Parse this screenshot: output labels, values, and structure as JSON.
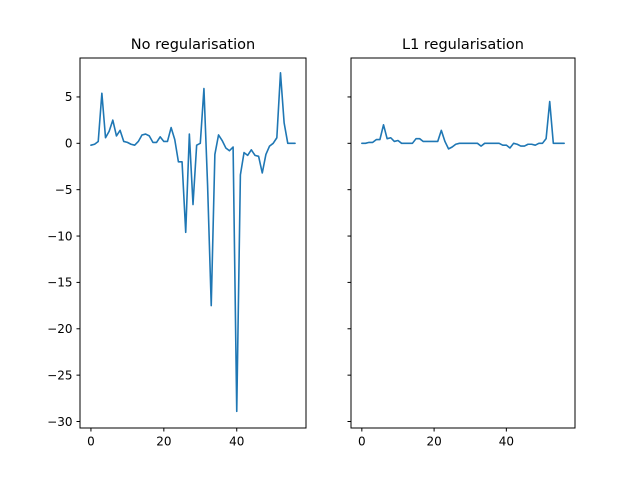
{
  "chart_data": [
    {
      "type": "line",
      "title": "No regularisation",
      "xlabel": "",
      "ylabel": "",
      "xlim": [
        -3,
        59
      ],
      "ylim": [
        -30.7,
        9.2
      ],
      "xticks": [
        0,
        20,
        40
      ],
      "yticks": [
        5,
        0,
        -5,
        -10,
        -15,
        -20,
        -25,
        -30
      ],
      "grid": false,
      "color": "#1f77b4",
      "series": [
        {
          "x": [
            0,
            1,
            2,
            3,
            4,
            5,
            6,
            7,
            8,
            9,
            10,
            11,
            12,
            13,
            14,
            15,
            16,
            17,
            18,
            19,
            20,
            21,
            22,
            23,
            24,
            25,
            26,
            27,
            28,
            29,
            30,
            31,
            32,
            33,
            34,
            35,
            36,
            37,
            38,
            39,
            40,
            41,
            42,
            43,
            44,
            45,
            46,
            47,
            48,
            49,
            50,
            51,
            52,
            53,
            54,
            55,
            56
          ],
          "values": [
            -0.2,
            -0.1,
            0.2,
            5.4,
            0.6,
            1.3,
            2.5,
            0.8,
            1.4,
            0.2,
            0.1,
            -0.1,
            -0.2,
            0.2,
            0.9,
            1.0,
            0.8,
            0.1,
            0.1,
            0.7,
            0.2,
            0.2,
            1.7,
            0.4,
            -2.0,
            -2.0,
            -9.6,
            1.0,
            -6.6,
            -0.2,
            0.0,
            5.9,
            -4.5,
            -17.5,
            -1.2,
            0.9,
            0.3,
            -0.5,
            -0.8,
            -0.4,
            -28.9,
            -3.4,
            -1.0,
            -1.3,
            -0.7,
            -1.3,
            -1.4,
            -3.2,
            -1.2,
            -0.3,
            0.0,
            0.6,
            7.6,
            2.2,
            0.0,
            0.0,
            0.0
          ]
        }
      ]
    },
    {
      "type": "line",
      "title": "L1 regularisation",
      "xlabel": "",
      "ylabel": "",
      "xlim": [
        -3,
        59
      ],
      "ylim": [
        -30.7,
        9.2
      ],
      "xticks": [
        0,
        20,
        40
      ],
      "yticks": [
        5,
        0,
        -5,
        -10,
        -15,
        -20,
        -25,
        -30
      ],
      "shared_y": true,
      "grid": false,
      "color": "#1f77b4",
      "series": [
        {
          "x": [
            0,
            1,
            2,
            3,
            4,
            5,
            6,
            7,
            8,
            9,
            10,
            11,
            12,
            13,
            14,
            15,
            16,
            17,
            18,
            19,
            20,
            21,
            22,
            23,
            24,
            25,
            26,
            27,
            28,
            29,
            30,
            31,
            32,
            33,
            34,
            35,
            36,
            37,
            38,
            39,
            40,
            41,
            42,
            43,
            44,
            45,
            46,
            47,
            48,
            49,
            50,
            51,
            52,
            53,
            54,
            55,
            56
          ],
          "values": [
            0.0,
            0.0,
            0.1,
            0.1,
            0.4,
            0.4,
            2.0,
            0.5,
            0.6,
            0.2,
            0.3,
            0.0,
            0.0,
            0.0,
            0.0,
            0.5,
            0.5,
            0.2,
            0.2,
            0.2,
            0.2,
            0.2,
            1.4,
            0.2,
            -0.6,
            -0.4,
            -0.1,
            0.0,
            0.0,
            0.0,
            0.0,
            0.0,
            0.0,
            -0.3,
            0.0,
            0.0,
            0.0,
            0.0,
            0.0,
            -0.2,
            -0.2,
            -0.5,
            0.0,
            -0.1,
            -0.3,
            -0.3,
            -0.1,
            -0.1,
            -0.2,
            0.0,
            0.0,
            0.5,
            4.5,
            0.0,
            0.0,
            0.0,
            0.0
          ]
        }
      ]
    }
  ]
}
